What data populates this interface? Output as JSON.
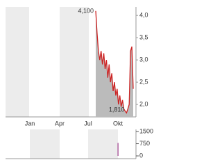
{
  "chart_data": [
    {
      "type": "line",
      "color": "#cc2222",
      "fill": "#bbbbbb",
      "values": [
        4.1,
        3.6,
        3.2,
        3.0,
        3.2,
        2.9,
        3.15,
        2.8,
        3.0,
        2.6,
        2.9,
        2.5,
        2.7,
        2.3,
        2.5,
        2.2,
        2.35,
        2.0,
        2.2,
        1.95,
        2.1,
        1.9,
        1.85,
        1.81,
        1.9,
        2.0,
        3.2,
        3.3,
        2.35
      ],
      "max_label": "4,100",
      "min_label": "1,810",
      "x_labels": [
        "Jan",
        "Apr",
        "Jul",
        "Okt"
      ],
      "ylim": [
        1.72,
        4.19
      ],
      "yticks": [
        {
          "value": 2,
          "label": "2,0"
        },
        {
          "value": 2.5,
          "label": "2,5"
        },
        {
          "value": 3,
          "label": "3,0"
        },
        {
          "value": 3.5,
          "label": "3,5"
        },
        {
          "value": 4,
          "label": "4,0"
        }
      ]
    },
    {
      "type": "bar",
      "color": "#9b3a8a",
      "values": [
        800
      ],
      "ylim": [
        -170,
        1630
      ],
      "yticks": [
        0,
        750,
        1500
      ]
    }
  ]
}
